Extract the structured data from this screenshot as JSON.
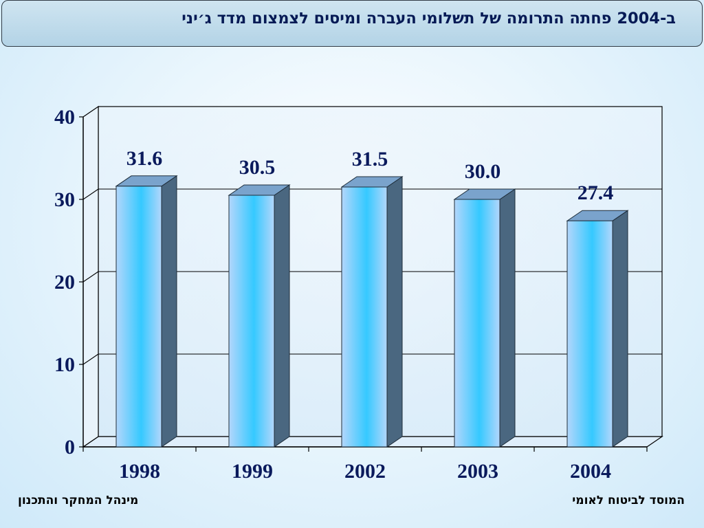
{
  "slide": {
    "title": "ב-2004 פחתה התרומה של תשלומי העברה ומיסים לצמצום מדד ג׳יני",
    "footer_right": "המוסד לביטוח לאומי",
    "footer_left": "מינהל המחקר והתכנון"
  },
  "chart_data": {
    "type": "bar",
    "categories": [
      "1998",
      "1999",
      "2002",
      "2003",
      "2004"
    ],
    "values": [
      31.6,
      30.5,
      31.5,
      30.0,
      27.4
    ],
    "value_labels": [
      "31.6",
      "30.5",
      "31.5",
      "30.0",
      "27.4"
    ],
    "ylim": [
      0,
      40
    ],
    "yticks": [
      "0",
      "10",
      "20",
      "30",
      "40"
    ],
    "grid": true,
    "legend": "none",
    "colors": {
      "bar_front_light": "#b3d6fb",
      "bar_front_dark": "#35c9ff",
      "bar_side": "#4a6780",
      "bar_top": "#7aa3cc",
      "label": "#0a1a5c"
    }
  }
}
